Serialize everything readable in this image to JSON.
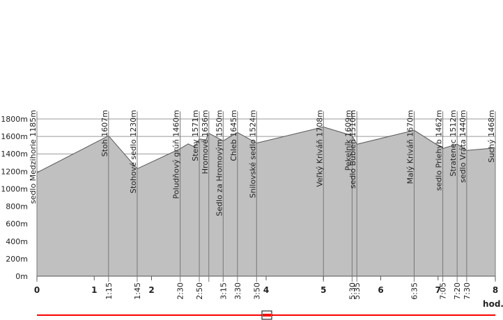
{
  "chart_data": {
    "type": "area",
    "x": [
      0,
      1.25,
      1.75,
      2.5,
      2.64,
      2.75,
      2.8333,
      2.95,
      3.0,
      3.25,
      3.5,
      3.8333,
      5.0,
      5.5,
      5.5833,
      6.5833,
      7.0833,
      7.3333,
      7.5,
      8
    ],
    "values": [
      1185,
      1607,
      1230,
      1460,
      1515,
      1480,
      1571,
      1560,
      1636,
      1550,
      1645,
      1524,
      1708,
      1609,
      1510,
      1670,
      1462,
      1512,
      1440,
      1468
    ],
    "color": "#c0c0c0",
    "line_color": "#555555",
    "xlim": [
      0,
      8
    ],
    "ylim": [
      0,
      1800
    ],
    "xticks": [
      0,
      1,
      2,
      4,
      5,
      6,
      7,
      8
    ],
    "time_ticks": [
      {
        "value": 1.25,
        "label": "1:15"
      },
      {
        "value": 1.75,
        "label": "1:45"
      },
      {
        "value": 2.5,
        "label": "2:30"
      },
      {
        "value": 2.8333,
        "label": "2:50"
      },
      {
        "value": 3.25,
        "label": "3:15"
      },
      {
        "value": 3.5,
        "label": "3:30"
      },
      {
        "value": 3.8333,
        "label": "3:50"
      },
      {
        "value": 5.5,
        "label": "5:30"
      },
      {
        "value": 5.5833,
        "label": "5:35"
      },
      {
        "value": 6.5833,
        "label": "6:35"
      },
      {
        "value": 7.0833,
        "label": "7:05"
      },
      {
        "value": 7.3333,
        "label": "7:20"
      },
      {
        "value": 7.5,
        "label": "7:30"
      }
    ],
    "yticks": [
      {
        "value": 0,
        "label": "0m"
      },
      {
        "value": 200,
        "label": "200m"
      },
      {
        "value": 400,
        "label": "400m"
      },
      {
        "value": 600,
        "label": "600m"
      },
      {
        "value": 800,
        "label": "800m"
      },
      {
        "value": 1000,
        "label": "1000m"
      },
      {
        "value": 1200,
        "label": "1200m"
      },
      {
        "value": 1400,
        "label": "1400m"
      },
      {
        "value": 1600,
        "label": "1600m"
      },
      {
        "value": 1800,
        "label": "1800m"
      }
    ],
    "xlabel": "hod.",
    "grid": true,
    "waypoints": [
      {
        "x": 0,
        "label": "sedlo Medzihorie 1185m"
      },
      {
        "x": 1.25,
        "label": "Stoh 1607m"
      },
      {
        "x": 1.75,
        "label": "Stohové sedlo 1230m"
      },
      {
        "x": 2.5,
        "label": "Poludňový grúň 1460m"
      },
      {
        "x": 2.8333,
        "label": "Steny 1571m"
      },
      {
        "x": 3.0,
        "label": "Hromové 1636m"
      },
      {
        "x": 3.25,
        "label": "Sedlo za Hromovým 1550m"
      },
      {
        "x": 3.5,
        "label": "Chleb 1645m"
      },
      {
        "x": 3.8333,
        "label": "Snilovské sedlo 1524m"
      },
      {
        "x": 5.0,
        "label": "Veľký Kriváň 1708m"
      },
      {
        "x": 5.5,
        "label": "Pekelník 1609m"
      },
      {
        "x": 5.5833,
        "label": "sedlo Bublen 1510m"
      },
      {
        "x": 6.5833,
        "label": "Malý Kriváň 1670m"
      },
      {
        "x": 7.0833,
        "label": "sedlo Priehyb 1462m"
      },
      {
        "x": 7.3333,
        "label": "Stratenec 1512m"
      },
      {
        "x": 7.5,
        "label": "sedlo Vráta 1440m"
      },
      {
        "x": 8,
        "label": "Suchý 1468m"
      }
    ]
  }
}
